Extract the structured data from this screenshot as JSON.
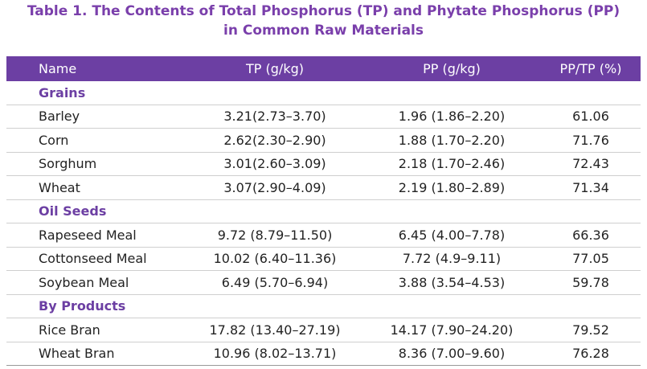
{
  "title": [
    "Table 1. The Contents of Total Phosphorus (TP) and Phytate Phosphorus (PP)",
    "in Common Raw Materials"
  ],
  "table": {
    "header": [
      "Name",
      "TP (g/kg)",
      "PP (g/kg)",
      "PP/TP (%)"
    ],
    "sections": [
      {
        "title": "Grains",
        "rows": [
          [
            "Barley",
            "3.21(2.73–3.70)",
            "1.96 (1.86–2.20)",
            "61.06"
          ],
          [
            "Corn",
            "2.62(2.30–2.90)",
            "1.88 (1.70–2.20)",
            "71.76"
          ],
          [
            "Sorghum",
            "3.01(2.60–3.09)",
            "2.18 (1.70–2.46)",
            "72.43"
          ],
          [
            "Wheat",
            "3.07(2.90–4.09)",
            "2.19 (1.80–2.89)",
            "71.34"
          ]
        ]
      },
      {
        "title": "Oil Seeds",
        "rows": [
          [
            "Rapeseed Meal",
            "9.72 (8.79–11.50)",
            "6.45 (4.00–7.78)",
            "66.36"
          ],
          [
            "Cottonseed Meal",
            "10.02 (6.40–11.36)",
            "7.72 (4.9–9.11)",
            "77.05"
          ],
          [
            "Soybean Meal",
            "6.49 (5.70–6.94)",
            "3.88 (3.54–4.53)",
            "59.78"
          ]
        ]
      },
      {
        "title": "By Products",
        "rows": [
          [
            "Rice Bran",
            "17.82 (13.40–27.19)",
            "14.17 (7.90–24.20)",
            "79.52"
          ],
          [
            "Wheat Bran",
            "10.96 (8.02–13.71)",
            "8.36 (7.00–9.60)",
            "76.28"
          ]
        ]
      }
    ]
  }
}
